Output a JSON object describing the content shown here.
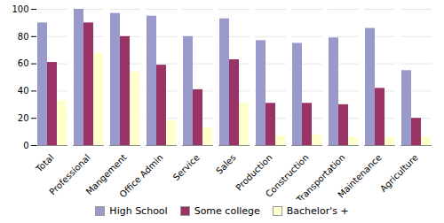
{
  "chart_data": {
    "type": "bar",
    "categories": [
      "Total",
      "Professional",
      "Mangement",
      "Office Admin",
      "Service",
      "Sales",
      "Production",
      "Construction",
      "Transportation",
      "Maintenance",
      "Agriculture"
    ],
    "series": [
      {
        "name": "High School",
        "color": "#9999cc",
        "values": [
          90,
          100,
          97,
          95,
          80,
          93,
          77,
          75,
          79,
          86,
          55
        ]
      },
      {
        "name": "Some college",
        "color": "#993366",
        "values": [
          61,
          90,
          80,
          59,
          41,
          63,
          31,
          31,
          30,
          42,
          20
        ]
      },
      {
        "name": "Bachelor's +",
        "color": "#ffffcc",
        "values": [
          33,
          68,
          54,
          18,
          13,
          31,
          7,
          8,
          6,
          6,
          6
        ]
      }
    ],
    "ylim": [
      0,
      100
    ],
    "yticks": [
      0,
      20,
      40,
      60,
      80,
      100
    ],
    "grid": true,
    "legend": "bottom"
  }
}
